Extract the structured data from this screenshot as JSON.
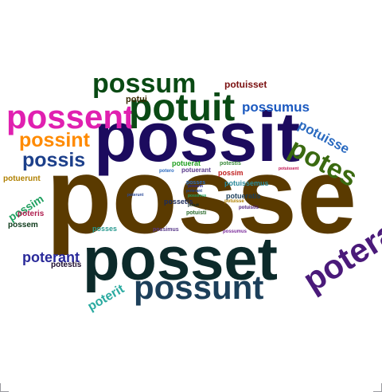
{
  "words": [
    {
      "text": "posse",
      "color": "#5a3a00"
    },
    {
      "text": "possit",
      "color": "#1c0b5e"
    },
    {
      "text": "posset",
      "color": "#0c2a2a"
    },
    {
      "text": "possunt",
      "color": "#1c3f5a"
    },
    {
      "text": "possent",
      "color": "#e020b0"
    },
    {
      "text": "potuit",
      "color": "#0a4a14"
    },
    {
      "text": "possum",
      "color": "#0a4a14"
    },
    {
      "text": "poterat",
      "color": "#4a1a7a"
    },
    {
      "text": "potes",
      "color": "#3a6a10"
    },
    {
      "text": "possint",
      "color": "#ff8a00"
    },
    {
      "text": "possis",
      "color": "#1c3f8a"
    },
    {
      "text": "possumus",
      "color": "#1c5ac0"
    },
    {
      "text": "potuisse",
      "color": "#2a6ac0"
    },
    {
      "text": "poterant",
      "color": "#2a2a9a"
    },
    {
      "text": "poterit",
      "color": "#2aaaa0"
    },
    {
      "text": "possim",
      "color": "#20a060"
    },
    {
      "text": "potuisset",
      "color": "#7a1010"
    },
    {
      "text": "potui",
      "color": "#3a2a00"
    },
    {
      "text": "potuerunt",
      "color": "#b08000"
    },
    {
      "text": "poteris",
      "color": "#b02050"
    },
    {
      "text": "possem",
      "color": "#0c3a1a"
    },
    {
      "text": "potestis",
      "color": "#1c0b2e"
    },
    {
      "text": "posses",
      "color": "#2a9a90"
    },
    {
      "text": "possimus",
      "color": "#5a3a8a"
    },
    {
      "text": "possumus",
      "color": "#7a2a9a"
    },
    {
      "text": "potuissent",
      "color": "#c01050"
    },
    {
      "text": "poterunt",
      "color": "#2a4a9a"
    },
    {
      "text": "potero",
      "color": "#2a6ac0"
    },
    {
      "text": "potuerat",
      "color": "#20a020"
    },
    {
      "text": "possetis",
      "color": "#1c2a5a"
    },
    {
      "text": "possim",
      "color": "#c02020"
    },
    {
      "text": "potuisti",
      "color": "#2a6a2a"
    },
    {
      "text": "potuissemus",
      "color": "#2a8a9a"
    },
    {
      "text": "potueratis",
      "color": "#1c3f5a"
    },
    {
      "text": "potuerant",
      "color": "#5a3a8a"
    },
    {
      "text": "potestis",
      "color": "#3a8a3a"
    },
    {
      "text": "posses",
      "color": "#2a6ac0"
    },
    {
      "text": "potuisse",
      "color": "#b08000"
    },
    {
      "text": "potuistis",
      "color": "#4a1a7a"
    },
    {
      "text": "poterant",
      "color": "#1c3f8a"
    },
    {
      "text": "possimus",
      "color": "#20a060"
    },
    {
      "text": "potuit",
      "color": "#0c2a2a"
    },
    {
      "text": "possem",
      "color": "#2a2a9a"
    }
  ]
}
